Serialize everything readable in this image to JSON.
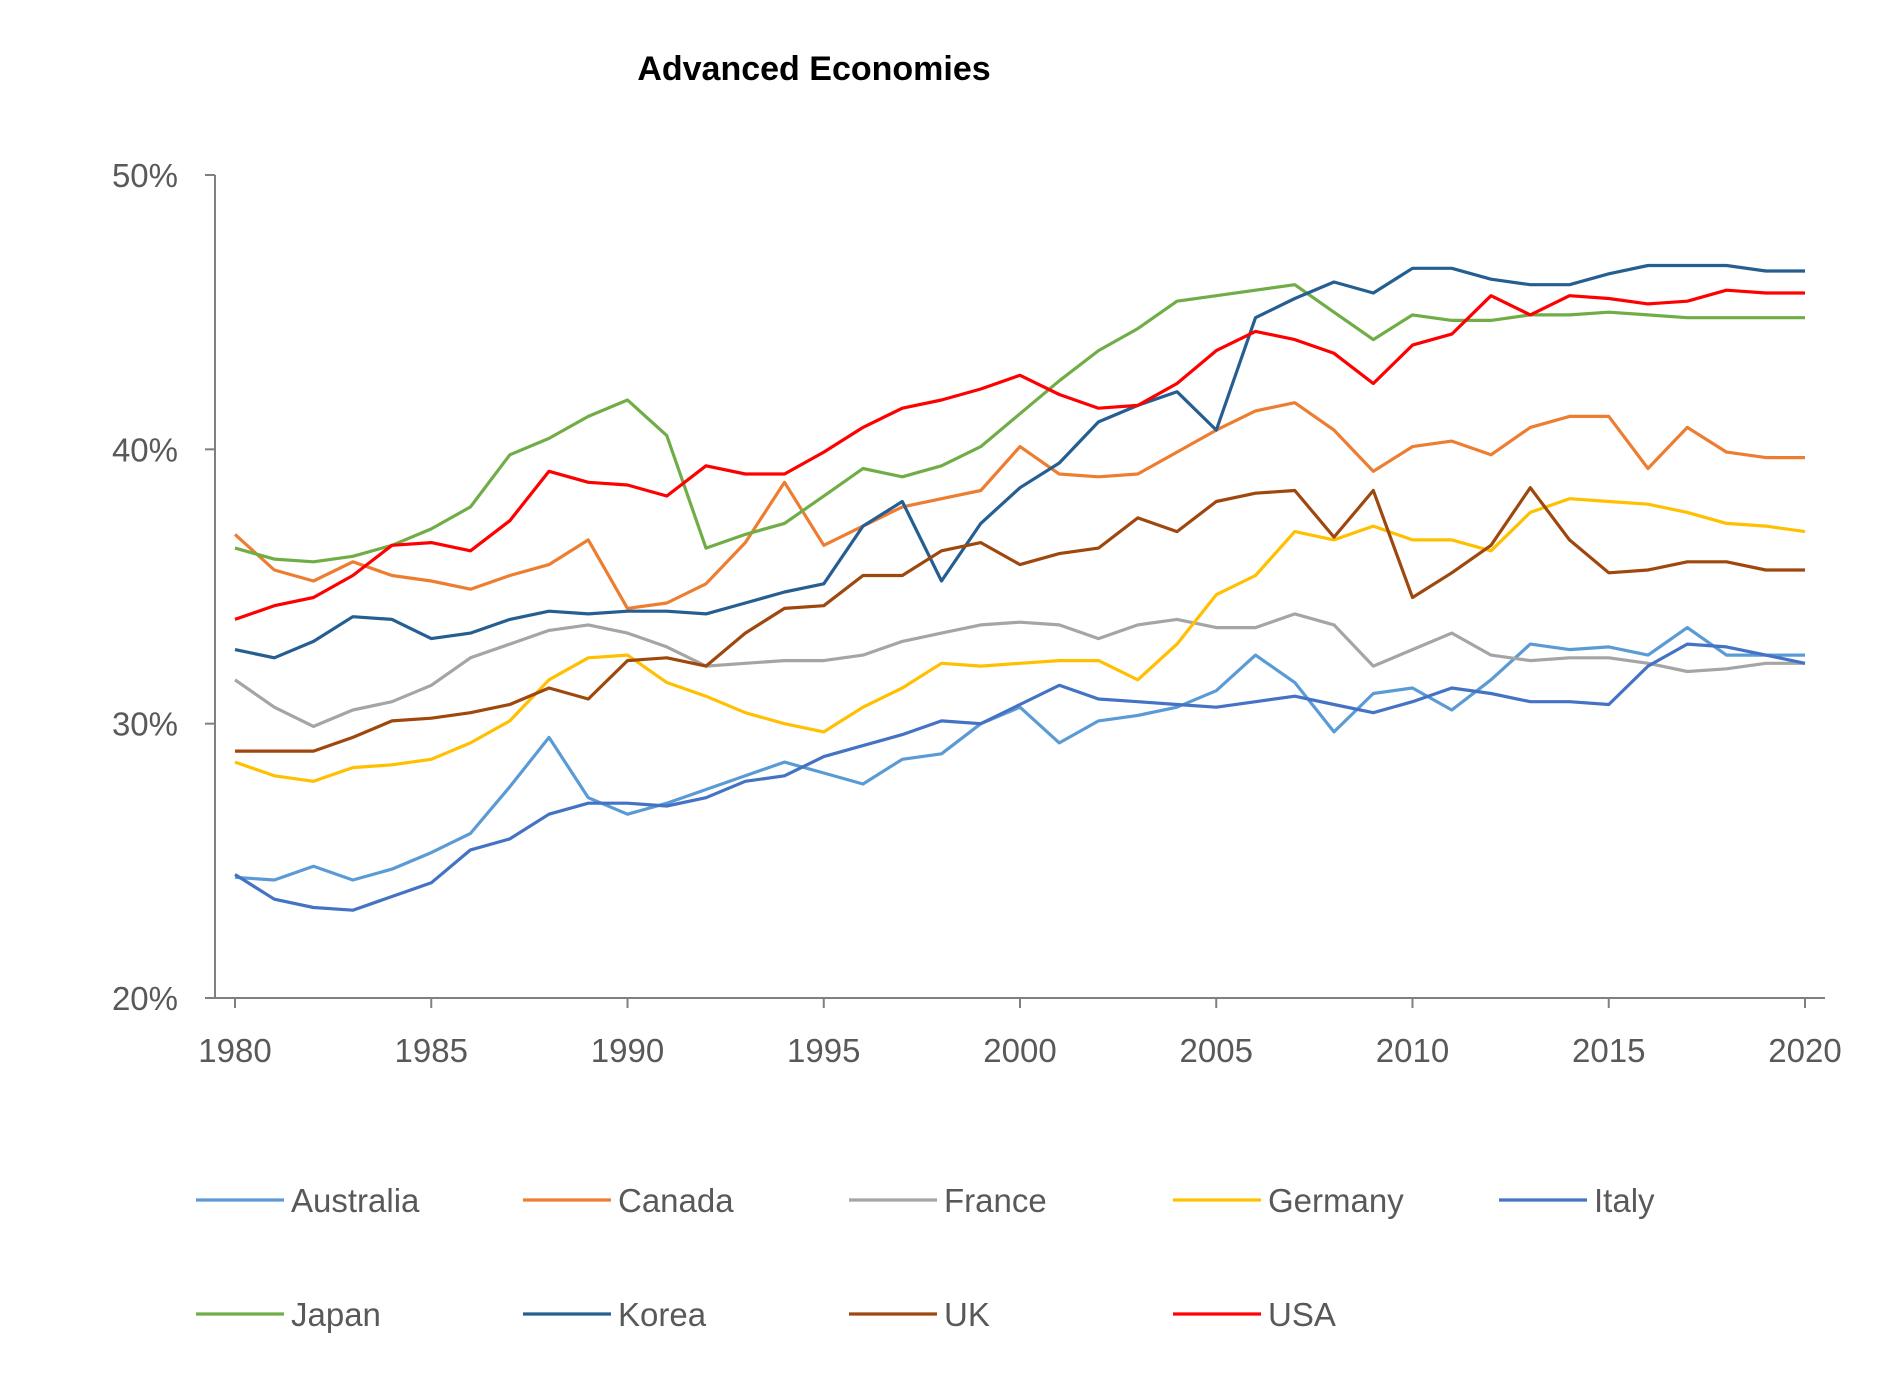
{
  "chart_data": {
    "type": "line",
    "title": "Advanced Economies",
    "xlabel": "",
    "ylabel": "",
    "xlim": [
      1980,
      2020
    ],
    "ylim": [
      20,
      50
    ],
    "y_ticks": [
      "20%",
      "30%",
      "40%",
      "50%"
    ],
    "y_tick_values": [
      20,
      30,
      40,
      50
    ],
    "x_ticks": [
      "1980",
      "1985",
      "1990",
      "1995",
      "2000",
      "2005",
      "2010",
      "2015",
      "2020"
    ],
    "x_tick_values": [
      1980,
      1985,
      1990,
      1995,
      2000,
      2005,
      2010,
      2015,
      2020
    ],
    "grid": false,
    "legend_position": "bottom",
    "x": [
      1980,
      1981,
      1982,
      1983,
      1984,
      1985,
      1986,
      1987,
      1988,
      1989,
      1990,
      1991,
      1992,
      1993,
      1994,
      1995,
      1996,
      1997,
      1998,
      1999,
      2000,
      2001,
      2002,
      2003,
      2004,
      2005,
      2006,
      2007,
      2008,
      2009,
      2010,
      2011,
      2012,
      2013,
      2014,
      2015,
      2016,
      2017,
      2018,
      2019,
      2020
    ],
    "series": [
      {
        "name": "Australia",
        "color": "#5B9BD5",
        "values": [
          24.4,
          24.3,
          24.8,
          24.3,
          24.7,
          25.3,
          26.0,
          27.7,
          29.5,
          27.3,
          26.7,
          27.1,
          27.6,
          28.1,
          28.6,
          28.2,
          27.8,
          28.7,
          28.9,
          30.0,
          30.6,
          29.3,
          30.1,
          30.3,
          30.6,
          31.2,
          32.5,
          31.5,
          29.7,
          31.1,
          31.3,
          30.5,
          31.6,
          32.9,
          32.7,
          32.8,
          32.5,
          33.5,
          32.5,
          32.5,
          32.5
        ]
      },
      {
        "name": "Canada",
        "color": "#ED7D31",
        "values": [
          36.9,
          35.6,
          35.2,
          35.9,
          35.4,
          35.2,
          34.9,
          35.4,
          35.8,
          36.7,
          34.2,
          34.4,
          35.1,
          36.6,
          38.8,
          36.5,
          37.2,
          37.9,
          38.2,
          38.5,
          40.1,
          39.1,
          39.0,
          39.1,
          39.9,
          40.7,
          41.4,
          41.7,
          40.7,
          39.2,
          40.1,
          40.3,
          39.8,
          40.8,
          41.2,
          41.2,
          39.3,
          40.8,
          39.9,
          39.7,
          39.7
        ]
      },
      {
        "name": "France",
        "color": "#A5A5A5",
        "values": [
          31.6,
          30.6,
          29.9,
          30.5,
          30.8,
          31.4,
          32.4,
          32.9,
          33.4,
          33.6,
          33.3,
          32.8,
          32.1,
          32.2,
          32.3,
          32.3,
          32.5,
          33.0,
          33.3,
          33.6,
          33.7,
          33.6,
          33.1,
          33.6,
          33.8,
          33.5,
          33.5,
          34.0,
          33.6,
          32.1,
          32.7,
          33.3,
          32.5,
          32.3,
          32.4,
          32.4,
          32.2,
          31.9,
          32.0,
          32.2,
          32.2
        ]
      },
      {
        "name": "Germany",
        "color": "#FFC000",
        "values": [
          28.6,
          28.1,
          27.9,
          28.4,
          28.5,
          28.7,
          29.3,
          30.1,
          31.6,
          32.4,
          32.5,
          31.5,
          31.0,
          30.4,
          30.0,
          29.7,
          30.6,
          31.3,
          32.2,
          32.1,
          32.2,
          32.3,
          32.3,
          31.6,
          32.9,
          34.7,
          35.4,
          37.0,
          36.7,
          37.2,
          36.7,
          36.7,
          36.3,
          37.7,
          38.2,
          38.1,
          38.0,
          37.7,
          37.3,
          37.2,
          37.0
        ]
      },
      {
        "name": "Italy",
        "color": "#4472C4",
        "values": [
          24.5,
          23.6,
          23.3,
          23.2,
          23.7,
          24.2,
          25.4,
          25.8,
          26.7,
          27.1,
          27.1,
          27.0,
          27.3,
          27.9,
          28.1,
          28.8,
          29.2,
          29.6,
          30.1,
          30.0,
          30.7,
          31.4,
          30.9,
          30.8,
          30.7,
          30.6,
          30.8,
          31.0,
          30.7,
          30.4,
          30.8,
          31.3,
          31.1,
          30.8,
          30.8,
          30.7,
          32.1,
          32.9,
          32.8,
          32.5,
          32.2
        ]
      },
      {
        "name": "Japan",
        "color": "#70AD47",
        "values": [
          36.4,
          36.0,
          35.9,
          36.1,
          36.5,
          37.1,
          37.9,
          39.8,
          40.4,
          41.2,
          41.8,
          40.5,
          36.4,
          36.9,
          37.3,
          38.3,
          39.3,
          39.0,
          39.4,
          40.1,
          41.3,
          42.5,
          43.6,
          44.4,
          45.4,
          45.6,
          45.8,
          46.0,
          45.0,
          44.0,
          44.9,
          44.7,
          44.7,
          44.9,
          44.9,
          45.0,
          44.9,
          44.8,
          44.8,
          44.8,
          44.8
        ]
      },
      {
        "name": "Korea",
        "color": "#255E91",
        "values": [
          32.7,
          32.4,
          33.0,
          33.9,
          33.8,
          33.1,
          33.3,
          33.8,
          34.1,
          34.0,
          34.1,
          34.1,
          34.0,
          34.4,
          34.8,
          35.1,
          37.2,
          38.1,
          35.2,
          37.3,
          38.6,
          39.5,
          41.0,
          41.6,
          42.1,
          40.7,
          44.8,
          45.5,
          46.1,
          45.7,
          46.6,
          46.6,
          46.2,
          46.0,
          46.0,
          46.4,
          46.7,
          46.7,
          46.7,
          46.5,
          46.5
        ]
      },
      {
        "name": "UK",
        "color": "#9E480E",
        "values": [
          29.0,
          29.0,
          29.0,
          29.5,
          30.1,
          30.2,
          30.4,
          30.7,
          31.3,
          30.9,
          32.3,
          32.4,
          32.1,
          33.3,
          34.2,
          34.3,
          35.4,
          35.4,
          36.3,
          36.6,
          35.8,
          36.2,
          36.4,
          37.5,
          37.0,
          38.1,
          38.4,
          38.5,
          36.8,
          38.5,
          34.6,
          35.5,
          36.5,
          38.6,
          36.7,
          35.5,
          35.6,
          35.9,
          35.9,
          35.6,
          35.6
        ]
      },
      {
        "name": "USA",
        "color": "#FF0000",
        "values": [
          33.8,
          34.3,
          34.6,
          35.4,
          36.5,
          36.6,
          36.3,
          37.4,
          39.2,
          38.8,
          38.7,
          38.3,
          39.4,
          39.1,
          39.1,
          39.9,
          40.8,
          41.5,
          41.8,
          42.2,
          42.7,
          42.0,
          41.5,
          41.6,
          42.4,
          43.6,
          44.3,
          44.0,
          43.5,
          42.4,
          43.8,
          44.2,
          45.6,
          44.9,
          45.6,
          45.5,
          45.3,
          45.4,
          45.8,
          45.7,
          45.7
        ]
      }
    ]
  }
}
